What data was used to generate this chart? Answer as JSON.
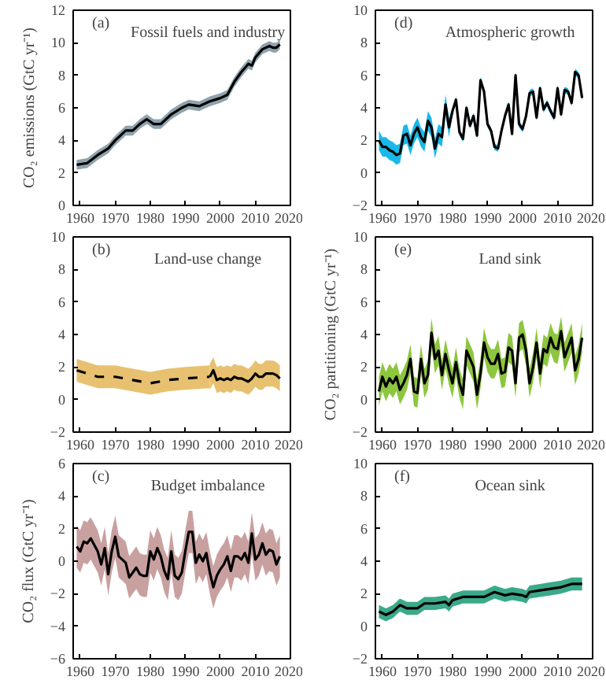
{
  "chart_data": [
    {
      "type": "line",
      "title": "Fossil fuels and industry",
      "annotations": [
        "(a)"
      ],
      "ylabel": "CO₂ emissions (GtC yr⁻¹)",
      "xlim": [
        1958,
        2020
      ],
      "xticks": [
        1960,
        1970,
        1980,
        1990,
        2000,
        2010,
        2020
      ],
      "ylim": [
        0,
        12
      ],
      "yticks": [
        0,
        2,
        4,
        6,
        8,
        10,
        12
      ],
      "series": [
        {
          "color": "#000000",
          "line_style": "solid",
          "x": [
            1959,
            1962,
            1965,
            1968,
            1970,
            1973,
            1975,
            1977,
            1979,
            1981,
            1983,
            1986,
            1989,
            1991,
            1994,
            1997,
            2000,
            2002,
            2004,
            2006,
            2008,
            2009,
            2010,
            2012,
            2014,
            2015,
            2016,
            2017
          ],
          "values": [
            2.5,
            2.6,
            3.1,
            3.5,
            4.0,
            4.6,
            4.6,
            5.0,
            5.3,
            5.0,
            5.0,
            5.6,
            6.0,
            6.2,
            6.1,
            6.4,
            6.6,
            6.8,
            7.6,
            8.2,
            8.7,
            8.6,
            9.1,
            9.6,
            9.8,
            9.7,
            9.7,
            9.9
          ],
          "lower": [
            2.2,
            2.3,
            2.8,
            3.2,
            3.7,
            4.3,
            4.3,
            4.7,
            5.0,
            4.7,
            4.7,
            5.3,
            5.7,
            5.9,
            5.8,
            6.1,
            6.3,
            6.5,
            7.3,
            7.9,
            8.4,
            8.3,
            8.8,
            9.3,
            9.5,
            9.4,
            9.4,
            9.6
          ],
          "upper": [
            2.8,
            2.9,
            3.4,
            3.8,
            4.3,
            4.9,
            4.9,
            5.3,
            5.6,
            5.3,
            5.3,
            5.9,
            6.3,
            6.5,
            6.4,
            6.7,
            6.9,
            7.1,
            7.9,
            8.5,
            9.0,
            8.9,
            9.4,
            9.9,
            10.1,
            10.0,
            10.0,
            10.2
          ]
        }
      ]
    },
    {
      "type": "line",
      "title": "Atmospheric growth",
      "annotations": [
        "(d)"
      ],
      "xlim": [
        1958,
        2020
      ],
      "xticks": [
        1960,
        1970,
        1980,
        1990,
        2000,
        2010,
        2020
      ],
      "ylim": [
        -2,
        10
      ],
      "yticks": [
        -2,
        0,
        2,
        4,
        6,
        8,
        10
      ],
      "series": [
        {
          "color": "#000000",
          "line_style": "solid",
          "x": [
            1959,
            1960,
            1961,
            1962,
            1963,
            1964,
            1965,
            1966,
            1967,
            1968,
            1969,
            1970,
            1971,
            1972,
            1973,
            1974,
            1975,
            1976,
            1977,
            1978,
            1979,
            1980,
            1981,
            1982,
            1983,
            1984,
            1985,
            1986,
            1987,
            1988,
            1989,
            1990,
            1991,
            1992,
            1993,
            1994,
            1995,
            1996,
            1997,
            1998,
            1999,
            2000,
            2001,
            2002,
            2003,
            2004,
            2005,
            2006,
            2007,
            2008,
            2009,
            2010,
            2011,
            2012,
            2013,
            2014,
            2015,
            2016,
            2017
          ],
          "values": [
            2.0,
            1.6,
            1.6,
            1.4,
            1.3,
            1.1,
            1.2,
            2.3,
            2.4,
            1.7,
            2.4,
            2.8,
            2.2,
            1.9,
            3.2,
            2.8,
            1.5,
            2.4,
            2.2,
            4.2,
            2.8,
            3.8,
            4.5,
            2.5,
            2.1,
            4.0,
            2.9,
            3.5,
            2.3,
            5.7,
            5.0,
            3.0,
            2.6,
            1.6,
            1.5,
            2.6,
            3.5,
            4.2,
            2.4,
            6.0,
            3.0,
            2.7,
            3.5,
            4.9,
            5.0,
            3.4,
            5.2,
            3.9,
            4.3,
            3.8,
            3.4,
            5.2,
            3.6,
            5.1,
            5.0,
            4.3,
            6.2,
            6.0,
            4.6
          ],
          "lower": [
            1.4,
            1.0,
            1.0,
            0.8,
            0.7,
            0.5,
            0.6,
            1.7,
            1.8,
            1.1,
            1.8,
            2.2,
            1.6,
            1.3,
            2.6,
            2.2,
            0.9,
            1.8,
            1.6,
            3.6,
            2.2,
            3.6,
            4.3,
            2.3,
            1.9,
            3.8,
            2.7,
            3.3,
            2.1,
            5.5,
            4.8,
            2.8,
            2.4,
            1.4,
            1.3,
            2.4,
            3.3,
            4.0,
            2.2,
            5.8,
            2.8,
            2.5,
            3.3,
            4.7,
            4.8,
            3.2,
            5.0,
            3.7,
            4.1,
            3.6,
            3.2,
            5.0,
            3.4,
            4.9,
            4.8,
            4.1,
            6.0,
            5.8,
            4.4
          ],
          "upper": [
            2.6,
            2.2,
            2.2,
            2.0,
            1.9,
            1.7,
            1.8,
            2.9,
            3.0,
            2.3,
            3.0,
            3.4,
            2.8,
            2.5,
            3.8,
            3.4,
            2.1,
            3.0,
            2.8,
            4.8,
            3.4,
            4.0,
            4.7,
            2.7,
            2.3,
            4.2,
            3.1,
            3.7,
            2.5,
            5.9,
            5.2,
            3.2,
            2.8,
            1.8,
            1.7,
            2.8,
            3.7,
            4.4,
            2.6,
            6.2,
            3.2,
            2.9,
            3.7,
            5.1,
            5.2,
            3.6,
            5.4,
            4.1,
            4.5,
            4.0,
            3.6,
            5.4,
            3.8,
            5.3,
            5.2,
            4.5,
            6.4,
            6.2,
            4.8
          ]
        }
      ]
    },
    {
      "type": "line",
      "title": "Land-use change",
      "annotations": [
        "(b)"
      ],
      "xlim": [
        1958,
        2020
      ],
      "xticks": [
        1960,
        1970,
        1980,
        1990,
        2000,
        2010,
        2020
      ],
      "ylim": [
        -2,
        10
      ],
      "yticks": [
        -2,
        0,
        2,
        4,
        6,
        8,
        10
      ],
      "series": [
        {
          "color": "#000000",
          "line_style": "dashed",
          "x": [
            1959,
            1965,
            1970,
            1975,
            1980,
            1985,
            1990,
            1997
          ],
          "values": [
            1.8,
            1.4,
            1.4,
            1.2,
            1.0,
            1.2,
            1.3,
            1.4
          ],
          "lower": [
            1.1,
            0.7,
            0.7,
            0.5,
            0.3,
            0.5,
            0.6,
            0.7
          ],
          "upper": [
            2.5,
            2.1,
            2.1,
            1.9,
            1.7,
            1.9,
            2.0,
            2.1
          ]
        },
        {
          "color": "#000000",
          "line_style": "solid",
          "x": [
            1997,
            1998,
            1999,
            2000,
            2001,
            2002,
            2003,
            2004,
            2005,
            2006,
            2007,
            2008,
            2009,
            2010,
            2011,
            2012,
            2013,
            2014,
            2015,
            2016,
            2017
          ],
          "values": [
            1.4,
            1.8,
            1.2,
            1.3,
            1.2,
            1.3,
            1.2,
            1.4,
            1.3,
            1.3,
            1.2,
            1.1,
            1.3,
            1.6,
            1.4,
            1.4,
            1.6,
            1.6,
            1.6,
            1.5,
            1.3
          ],
          "lower": [
            0.6,
            1.0,
            0.4,
            0.5,
            0.4,
            0.5,
            0.4,
            0.6,
            0.5,
            0.5,
            0.4,
            0.3,
            0.5,
            0.8,
            0.6,
            0.6,
            0.8,
            0.8,
            0.8,
            0.7,
            0.5
          ],
          "upper": [
            2.2,
            2.6,
            2.0,
            2.1,
            2.0,
            2.1,
            2.0,
            2.2,
            2.1,
            2.1,
            2.0,
            1.9,
            2.1,
            2.4,
            2.2,
            2.2,
            2.4,
            2.4,
            2.4,
            2.3,
            2.1
          ]
        }
      ]
    },
    {
      "type": "line",
      "title": "Land sink",
      "annotations": [
        "(e)"
      ],
      "ylabel": "CO₂ partitioning (GtC yr⁻¹)",
      "xlim": [
        1958,
        2020
      ],
      "xticks": [
        1960,
        1970,
        1980,
        1990,
        2000,
        2010,
        2020
      ],
      "ylim": [
        -2,
        10
      ],
      "yticks": [
        -2,
        0,
        2,
        4,
        6,
        8,
        10
      ],
      "series": [
        {
          "color": "#000000",
          "line_style": "solid",
          "x": [
            1959,
            1960,
            1961,
            1962,
            1963,
            1964,
            1965,
            1966,
            1967,
            1968,
            1969,
            1970,
            1971,
            1972,
            1973,
            1974,
            1975,
            1976,
            1977,
            1978,
            1979,
            1980,
            1981,
            1982,
            1983,
            1984,
            1985,
            1986,
            1987,
            1988,
            1989,
            1990,
            1991,
            1992,
            1993,
            1994,
            1995,
            1996,
            1997,
            1998,
            1999,
            2000,
            2001,
            2002,
            2003,
            2004,
            2005,
            2006,
            2007,
            2008,
            2009,
            2010,
            2011,
            2012,
            2013,
            2014,
            2015,
            2016,
            2017
          ],
          "values": [
            0.5,
            1.4,
            0.8,
            1.3,
            1.0,
            1.4,
            0.6,
            1.0,
            1.5,
            2.5,
            0.5,
            0.4,
            2.5,
            1.0,
            1.5,
            4.1,
            2.5,
            3.0,
            1.5,
            2.8,
            1.8,
            1.0,
            2.3,
            1.0,
            0.3,
            3.0,
            2.5,
            2.0,
            0.3,
            1.6,
            3.5,
            2.6,
            2.2,
            2.2,
            2.8,
            1.6,
            1.7,
            3.2,
            3.0,
            1.0,
            3.8,
            4.0,
            3.0,
            1.0,
            2.0,
            3.5,
            1.6,
            3.1,
            2.9,
            3.8,
            3.2,
            3.1,
            4.2,
            2.6,
            3.2,
            3.8,
            1.8,
            2.5,
            3.8
          ],
          "lower": [
            -0.4,
            0.5,
            -0.1,
            0.4,
            0.1,
            0.5,
            -0.3,
            0.1,
            0.6,
            1.6,
            -0.4,
            -0.5,
            1.6,
            0.1,
            0.6,
            3.2,
            1.6,
            2.1,
            0.6,
            1.9,
            0.9,
            0.1,
            1.4,
            0.1,
            -0.6,
            2.1,
            1.6,
            1.1,
            -0.6,
            0.7,
            2.6,
            1.7,
            1.3,
            1.3,
            1.9,
            0.7,
            0.8,
            2.3,
            2.1,
            0.1,
            2.9,
            3.1,
            2.1,
            0.1,
            1.1,
            2.6,
            0.7,
            2.2,
            2.0,
            2.9,
            2.3,
            2.2,
            3.3,
            1.7,
            2.3,
            2.9,
            0.9,
            1.6,
            2.9
          ],
          "upper": [
            1.4,
            2.3,
            1.7,
            2.2,
            1.9,
            2.3,
            1.5,
            1.9,
            2.4,
            3.4,
            1.4,
            1.3,
            3.4,
            1.9,
            2.4,
            5.0,
            3.4,
            3.9,
            2.4,
            3.7,
            2.7,
            1.9,
            3.2,
            1.9,
            1.2,
            3.9,
            3.4,
            2.9,
            1.2,
            2.5,
            4.4,
            3.5,
            3.1,
            3.1,
            3.7,
            2.5,
            2.6,
            4.1,
            3.9,
            1.9,
            4.7,
            4.9,
            3.9,
            1.9,
            2.9,
            4.4,
            2.5,
            4.0,
            3.8,
            4.7,
            4.1,
            4.0,
            5.1,
            3.5,
            4.1,
            4.7,
            2.7,
            3.4,
            4.7
          ]
        }
      ]
    },
    {
      "type": "line",
      "title": "Budget imbalance",
      "annotations": [
        "(c)"
      ],
      "ylabel": "CO₂ flux (GtC yr⁻¹)",
      "xlim": [
        1958,
        2020
      ],
      "xticks": [
        1960,
        1970,
        1980,
        1990,
        2000,
        2010,
        2020
      ],
      "ylim": [
        -6,
        6
      ],
      "yticks": [
        -6,
        -4,
        -2,
        0,
        2,
        4,
        6
      ],
      "series": [
        {
          "color": "#000000",
          "line_style": "solid",
          "x": [
            1959,
            1960,
            1961,
            1962,
            1963,
            1964,
            1965,
            1966,
            1967,
            1968,
            1969,
            1970,
            1971,
            1972,
            1973,
            1974,
            1975,
            1976,
            1977,
            1978,
            1979,
            1980,
            1981,
            1982,
            1983,
            1984,
            1985,
            1986,
            1987,
            1988,
            1989,
            1990,
            1991,
            1992,
            1993,
            1994,
            1995,
            1996,
            1997,
            1998,
            1999,
            2000,
            2001,
            2002,
            2003,
            2004,
            2005,
            2006,
            2007,
            2008,
            2009,
            2010,
            2011,
            2012,
            2013,
            2014,
            2015,
            2016,
            2017
          ],
          "values": [
            0.9,
            0.6,
            1.2,
            1.1,
            1.4,
            1.0,
            0.6,
            -0.2,
            0.8,
            -0.8,
            0.6,
            1.5,
            0.3,
            0.1,
            -0.1,
            -1.0,
            -0.7,
            -0.4,
            -0.8,
            -0.9,
            -0.9,
            0.6,
            0.1,
            0.8,
            0.3,
            -0.6,
            -1.1,
            0.6,
            -0.9,
            -1.1,
            -0.7,
            0.6,
            1.8,
            1.8,
            -0.1,
            0.4,
            0.0,
            0.5,
            -0.7,
            -1.6,
            -0.9,
            -0.5,
            -0.2,
            0.3,
            -0.6,
            0.3,
            0.3,
            0.1,
            0.5,
            -0.1,
            1.7,
            0.1,
            0.4,
            1.1,
            0.4,
            0.7,
            0.6,
            -0.2,
            0.3
          ],
          "lower": [
            -0.4,
            -0.7,
            -0.1,
            -0.2,
            0.1,
            -0.3,
            -0.7,
            -1.5,
            -0.5,
            -2.1,
            -0.7,
            0.2,
            -1.0,
            -1.2,
            -1.4,
            -2.3,
            -2.0,
            -1.7,
            -2.1,
            -2.2,
            -2.2,
            -0.7,
            -1.2,
            -0.5,
            -1.0,
            -1.9,
            -2.4,
            -0.7,
            -2.2,
            -2.4,
            -2.0,
            -0.7,
            0.5,
            0.5,
            -1.4,
            -0.9,
            -1.3,
            -0.8,
            -2.0,
            -2.9,
            -2.2,
            -1.8,
            -1.5,
            -1.0,
            -1.9,
            -1.0,
            -1.0,
            -1.2,
            -0.8,
            -1.4,
            0.4,
            -1.2,
            -0.9,
            -0.2,
            -0.9,
            -0.6,
            -0.7,
            -1.5,
            -1.0
          ],
          "upper": [
            2.2,
            1.9,
            2.5,
            2.4,
            2.7,
            2.3,
            1.9,
            1.1,
            2.1,
            0.5,
            1.9,
            2.8,
            1.6,
            1.4,
            1.2,
            0.3,
            0.6,
            0.9,
            0.5,
            0.4,
            0.4,
            1.9,
            1.4,
            2.1,
            1.6,
            0.7,
            0.2,
            1.9,
            0.4,
            0.2,
            0.6,
            1.9,
            3.1,
            3.1,
            1.2,
            1.7,
            1.3,
            1.8,
            0.6,
            -0.3,
            0.4,
            0.8,
            1.1,
            1.6,
            0.7,
            1.6,
            1.6,
            1.4,
            1.8,
            1.2,
            3.0,
            1.4,
            1.7,
            2.4,
            1.7,
            2.0,
            1.9,
            1.1,
            1.6
          ]
        }
      ]
    },
    {
      "type": "line",
      "title": "Ocean sink",
      "annotations": [
        "(f)"
      ],
      "xlim": [
        1958,
        2020
      ],
      "xticks": [
        1960,
        1970,
        1980,
        1990,
        2000,
        2010,
        2020
      ],
      "ylim": [
        -2,
        10
      ],
      "yticks": [
        -2,
        0,
        2,
        4,
        6,
        8,
        10
      ],
      "series": [
        {
          "color": "#000000",
          "line_style": "solid",
          "x": [
            1959,
            1961,
            1963,
            1965,
            1967,
            1970,
            1972,
            1975,
            1978,
            1979,
            1980,
            1983,
            1986,
            1989,
            1992,
            1995,
            1997,
            2000,
            2001,
            2002,
            2005,
            2008,
            2011,
            2014,
            2017
          ],
          "values": [
            0.9,
            0.7,
            0.9,
            1.3,
            1.1,
            1.1,
            1.4,
            1.4,
            1.5,
            1.3,
            1.6,
            1.8,
            1.8,
            1.8,
            2.1,
            1.9,
            2.0,
            1.9,
            1.8,
            2.1,
            2.2,
            2.3,
            2.4,
            2.6,
            2.6
          ],
          "lower": [
            0.5,
            0.3,
            0.5,
            0.9,
            0.7,
            0.7,
            1.0,
            1.0,
            1.1,
            0.9,
            1.2,
            1.4,
            1.4,
            1.4,
            1.7,
            1.5,
            1.6,
            1.5,
            1.4,
            1.7,
            1.8,
            1.9,
            2.0,
            2.2,
            2.2
          ],
          "upper": [
            1.3,
            1.1,
            1.3,
            1.7,
            1.5,
            1.5,
            1.8,
            1.8,
            1.9,
            1.7,
            2.0,
            2.2,
            2.2,
            2.2,
            2.5,
            2.3,
            2.4,
            2.3,
            2.2,
            2.5,
            2.6,
            2.7,
            2.8,
            3.0,
            3.0
          ]
        }
      ]
    }
  ]
}
